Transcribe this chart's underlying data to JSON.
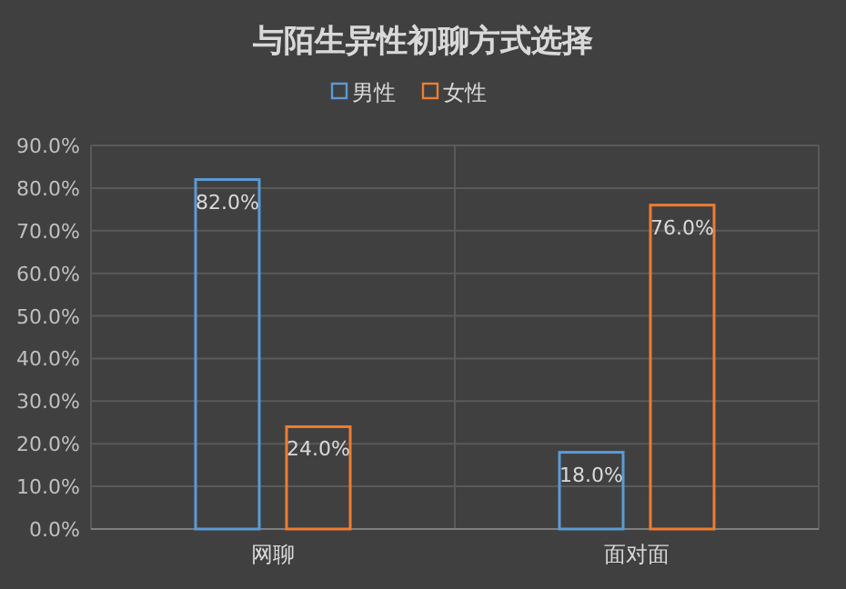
{
  "chart_data": {
    "type": "bar",
    "title": "与陌生异性初聊方式选择",
    "categories": [
      "网聊",
      "面对面"
    ],
    "series": [
      {
        "name": "男性",
        "color": "#5b9bd5",
        "values": [
          82,
          18
        ],
        "value_labels": [
          "82.0%",
          "18.0%"
        ]
      },
      {
        "name": "女性",
        "color": "#ed7d31",
        "values": [
          24,
          76
        ],
        "value_labels": [
          "24.0%",
          "76.0%"
        ]
      }
    ],
    "ylim": [
      0,
      90
    ],
    "yticks": [
      {
        "value": 0,
        "label": "0.0%"
      },
      {
        "value": 10,
        "label": "10.0%"
      },
      {
        "value": 20,
        "label": "20.0%"
      },
      {
        "value": 30,
        "label": "30.0%"
      },
      {
        "value": 40,
        "label": "40.0%"
      },
      {
        "value": 50,
        "label": "50.0%"
      },
      {
        "value": 60,
        "label": "60.0%"
      },
      {
        "value": 70,
        "label": "70.0%"
      },
      {
        "value": 80,
        "label": "80.0%"
      },
      {
        "value": 90,
        "label": "90.0%"
      }
    ],
    "grid": true,
    "legend": "top"
  }
}
